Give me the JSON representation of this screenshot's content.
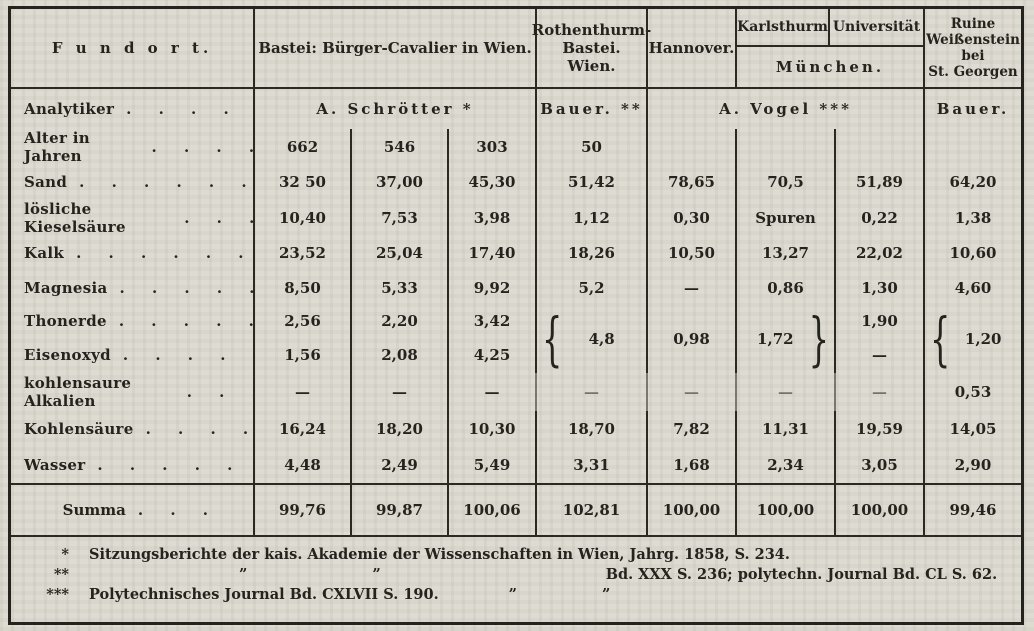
{
  "table": {
    "header": {
      "fundort": "F u n d o r t.",
      "bastei": "Bastei: Bürger-Cavalier in Wien.",
      "rothenthurm_line1": "Rothenthurm-",
      "rothenthurm_line2": "Bastei. Wien.",
      "hannover": "Hannover.",
      "karlsthurm": "Karlsthurm",
      "universitaet": "Universität",
      "muenchen": "München.",
      "ruine_line1": "Ruine",
      "ruine_line2": "Weißenstein",
      "ruine_line3": "bei",
      "ruine_line4": "St. Georgen"
    },
    "analytiker": {
      "label": "Analytiker",
      "dots": ". . . . .",
      "schroetter": "A. Schrötter *",
      "bauer1": "Bauer. **",
      "vogel": "A. Vogel ***",
      "bauer2": "Bauer."
    },
    "rows": [
      {
        "label": "Alter in Jahren",
        "dots": ". . . .",
        "values": [
          "662",
          "546",
          "303",
          "50",
          "",
          "",
          "",
          ""
        ]
      },
      {
        "label": "Sand",
        "dots": ". . . . . . . .",
        "values": [
          "32 50",
          "37,00",
          "45,30",
          "51,42",
          "78,65",
          "70,5",
          "51,89",
          "64,20"
        ]
      },
      {
        "label": "lösliche Kieselsäure",
        "dots": ". . .",
        "values": [
          "10,40",
          "7,53",
          "3,98",
          "1,12",
          "0,30",
          "Spuren",
          "0,22",
          "1,38"
        ]
      },
      {
        "label": "Kalk",
        "dots": ". . . . . . . .",
        "values": [
          "23,52",
          "25,04",
          "17,40",
          "18,26",
          "10,50",
          "13,27",
          "22,02",
          "10,60"
        ]
      },
      {
        "label": "Magnesia",
        "dots": ". . . . . .",
        "values": [
          "8,50",
          "5,33",
          "9,92",
          "5,2",
          "—",
          "0,86",
          "1,30",
          "4,60"
        ]
      },
      {
        "label": "Thonerde",
        "dots": ". . . . . .",
        "values": [
          "2,56",
          "2,20",
          "3,42"
        ]
      },
      {
        "label": "Eisenoxyd",
        "dots": ". . . . .",
        "values": [
          "1,56",
          "2,08",
          "4,25"
        ]
      },
      {
        "label": "kohlensaure Alkalien",
        "dots": ". . .",
        "values": [
          "—",
          "—",
          "—",
          "—",
          "—",
          "—",
          "—",
          "0,53"
        ]
      },
      {
        "label": "Kohlensäure",
        "dots": ". . . . .",
        "values": [
          "16,24",
          "18,20",
          "10,30",
          "18,70",
          "7,82",
          "11,31",
          "19,59",
          "14,05"
        ]
      },
      {
        "label": "Wasser",
        "dots": ". . . . . . . .",
        "values": [
          "4,48",
          "2,49",
          "5,49",
          "3,31",
          "1,68",
          "2,34",
          "3,05",
          "2,90"
        ]
      }
    ],
    "merged": {
      "rothenthurm": {
        "brace": "{",
        "value": "4,8"
      },
      "hannover": {
        "value": "0,98"
      },
      "karlsthurm": {
        "value": "1,72",
        "brace": "}"
      },
      "universitaet_thonerde": "1,90",
      "universitaet_eisenoxyd": "—",
      "ruine": {
        "brace": "{",
        "value": "1,20"
      }
    },
    "summa": {
      "label": "Summa",
      "dots": ". . .",
      "values": [
        "99,76",
        "99,87",
        "100,06",
        "102,81",
        "100,00",
        "100,00",
        "100,00",
        "99,46"
      ]
    }
  },
  "footnotes": {
    "fn1": {
      "marker": "*",
      "text": "Sitzungsberichte der kais. Akademie der Wissenschaften in Wien, Jahrg. 1858, S. 234."
    },
    "fn2": {
      "marker": "**",
      "ditto1": "”",
      "ditto2": "”",
      "text": "Bd. XXX S. 236; polytechn. Journal Bd. CL S. 62."
    },
    "fn3": {
      "marker": "***",
      "text": "Polytechnisches Journal Bd. CXLVII S. 190.",
      "ditto1": "”",
      "ditto2": "”"
    }
  }
}
